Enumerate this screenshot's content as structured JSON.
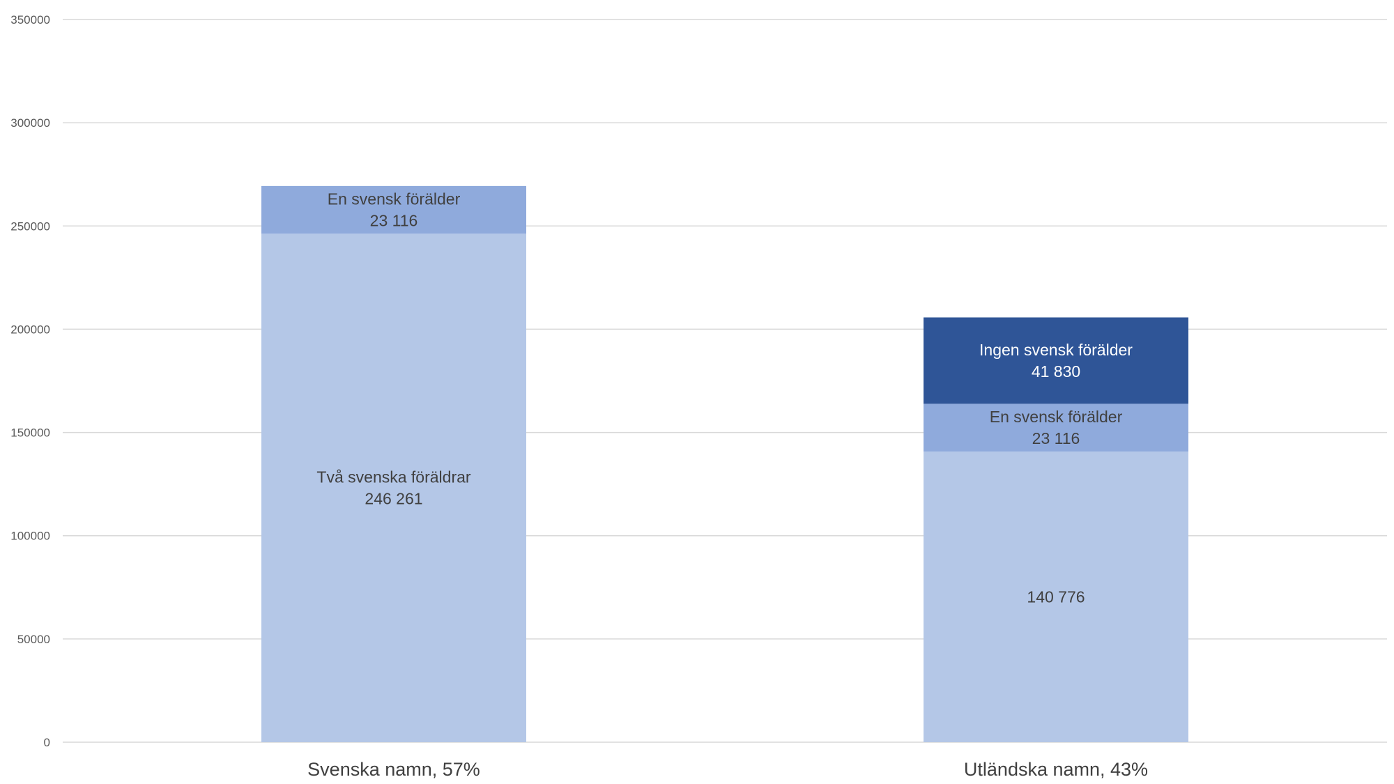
{
  "chart_data": {
    "type": "bar",
    "stacked": true,
    "categories": [
      "Svenska namn, 57%",
      "Utländska namn, 43%"
    ],
    "ylim": [
      0,
      350000
    ],
    "yticks": [
      0,
      50000,
      100000,
      150000,
      200000,
      250000,
      300000,
      350000
    ],
    "ytick_labels": [
      "0",
      "50000",
      "100000",
      "150000",
      "200000",
      "250000",
      "300000",
      "350000"
    ],
    "grid": true,
    "legend": "none",
    "series": [
      {
        "color": "#b4c7e7",
        "label_color": "#404040",
        "values": [
          246261,
          140776
        ],
        "data_labels": [
          [
            "Två svenska föräldrar",
            "246 261"
          ],
          [
            "140 776"
          ]
        ]
      },
      {
        "color": "#8faadc",
        "label_color": "#404040",
        "values": [
          23116,
          23116
        ],
        "data_labels": [
          [
            "En svensk förälder",
            "23 116"
          ],
          [
            "En svensk förälder",
            "23 116"
          ]
        ]
      },
      {
        "color": "#2f5597",
        "label_color": "#ffffff",
        "values": [
          0,
          41830
        ],
        "data_labels": [
          [],
          [
            "Ingen svensk förälder",
            "41 830"
          ]
        ]
      }
    ]
  }
}
